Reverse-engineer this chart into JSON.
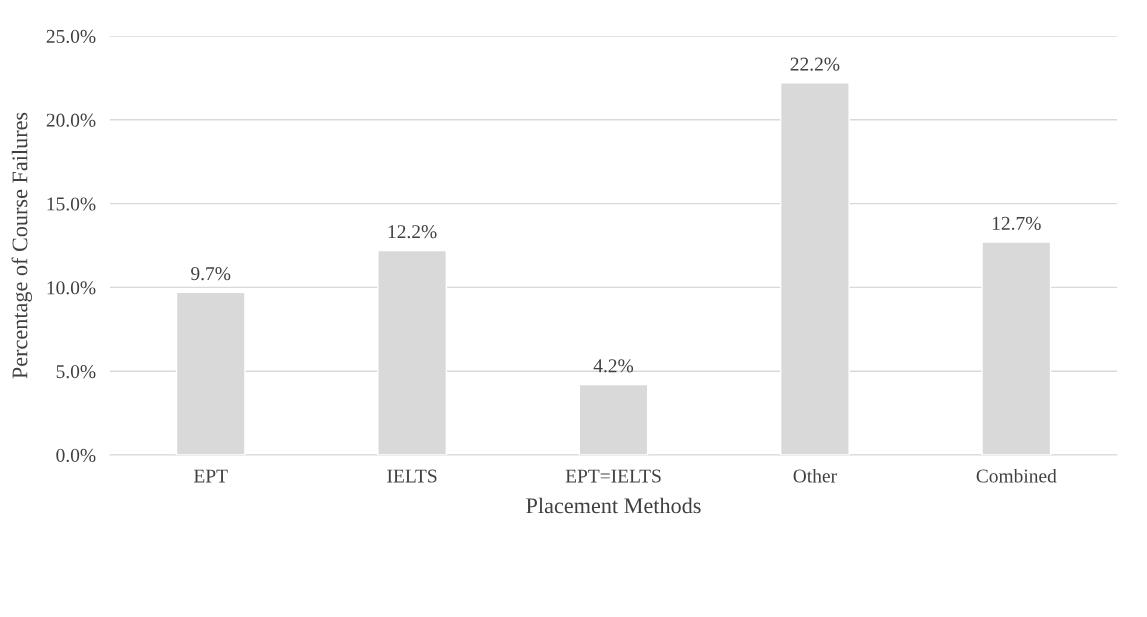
{
  "chart_data": {
    "type": "bar",
    "xlabel": "Placement Methods",
    "ylabel": "Percentage of Course Failures",
    "categories": [
      "EPT",
      "IELTS",
      "EPT=IELTS",
      "Other",
      "Combined"
    ],
    "values": [
      9.7,
      12.2,
      4.2,
      22.2,
      12.7
    ],
    "value_labels": [
      "9.7%",
      "12.2%",
      "4.2%",
      "22.2%",
      "12.7%"
    ],
    "color": "#d9d9d9",
    "ylim": [
      0,
      25
    ],
    "yticks": [
      {
        "value": 0,
        "label": "0.0%"
      },
      {
        "value": 5,
        "label": "5.0%"
      },
      {
        "value": 10,
        "label": "10.0%"
      },
      {
        "value": 15,
        "label": "15.0%"
      },
      {
        "value": 20,
        "label": "20.0%"
      },
      {
        "value": 25,
        "label": "25.0%"
      }
    ],
    "grid": "y",
    "legend": false
  }
}
